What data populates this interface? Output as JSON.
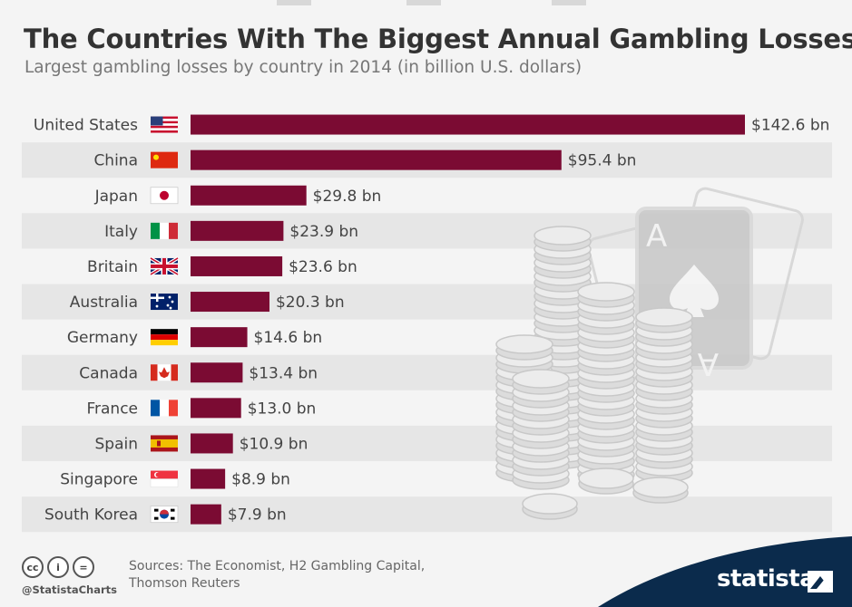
{
  "header": {
    "title": "The Countries With The Biggest Annual Gambling Losses",
    "subtitle": "Largest gambling losses by country in 2014 (in billion U.S. dollars)"
  },
  "chart_data": {
    "type": "bar",
    "orientation": "horizontal",
    "title": "The Countries With The Biggest Annual Gambling Losses",
    "subtitle": "Largest gambling losses by country in 2014 (in billion U.S. dollars)",
    "categories": [
      "United States",
      "China",
      "Japan",
      "Italy",
      "Britain",
      "Australia",
      "Germany",
      "Canada",
      "France",
      "Spain",
      "Singapore",
      "South Korea"
    ],
    "values": [
      142.6,
      95.4,
      29.8,
      23.9,
      23.6,
      20.3,
      14.6,
      13.4,
      13.0,
      10.9,
      8.9,
      7.9
    ],
    "value_labels": [
      "$142.6 bn",
      "$95.4 bn",
      "$29.8 bn",
      "$23.9 bn",
      "$23.6 bn",
      "$20.3 bn",
      "$14.6 bn",
      "$13.4 bn",
      "$13.0 bn",
      "$10.9 bn",
      "$8.9 bn",
      "$7.9 bn"
    ],
    "flags": [
      "flag-us-icon",
      "flag-china-icon",
      "flag-japan-icon",
      "flag-italy-icon",
      "flag-britain-icon",
      "flag-australia-icon",
      "flag-germany-icon",
      "flag-canada-icon",
      "flag-france-icon",
      "flag-spain-icon",
      "flag-singapore-icon",
      "flag-south-korea-icon"
    ],
    "xlim": [
      0,
      142.6
    ],
    "bar_color": "#7b0b33",
    "stripe_color": "#e6e6e6",
    "grid": false,
    "legend": "none"
  },
  "decoration": {
    "card_letter": "A",
    "icons": [
      "ace-of-spades-card-icon",
      "casino-chips-icon"
    ]
  },
  "footer": {
    "cc_icons": [
      "cc-icon",
      "by-icon",
      "nd-icon"
    ],
    "cc_labels": [
      "cc",
      "i",
      "="
    ],
    "handle": "@StatistaCharts",
    "sources_line1": "Sources: The Economist, H2 Gambling Capital,",
    "sources_line2": "Thomson Reuters",
    "brand": "statista",
    "brand_color": "#0b2b4c"
  }
}
